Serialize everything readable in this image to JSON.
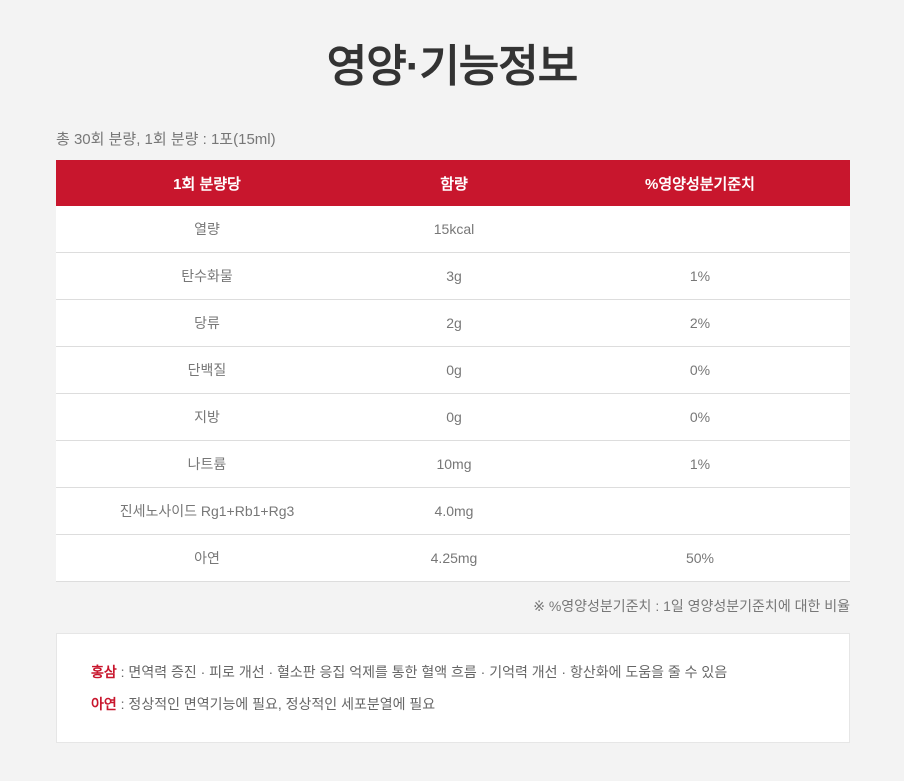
{
  "title": "영양·기능정보",
  "serving": "총 30회 분량, 1회 분량 : 1포(15ml)",
  "table": {
    "headers": [
      "1회 분량당",
      "함량",
      "%영양성분기준치"
    ],
    "rows": [
      [
        "열량",
        "15kcal",
        ""
      ],
      [
        "탄수화물",
        "3g",
        "1%"
      ],
      [
        "당류",
        "2g",
        "2%"
      ],
      [
        "단백질",
        "0g",
        "0%"
      ],
      [
        "지방",
        "0g",
        "0%"
      ],
      [
        "나트륨",
        "10mg",
        "1%"
      ],
      [
        "진세노사이드 Rg1+Rb1+Rg3",
        "4.0mg",
        ""
      ],
      [
        "아연",
        "4.25mg",
        "50%"
      ]
    ]
  },
  "note": "※ %영양성분기준치 : 1일 영양성분기준치에 대한 비율",
  "functions": [
    {
      "key": "홍삼",
      "text": " : 면역력 증진 · 피로 개선 · 혈소판 응집 억제를 통한 혈액 흐름 · 기억력 개선 · 항산화에 도움을 줄 수 있음"
    },
    {
      "key": "아연",
      "text": " : 정상적인 면역기능에 필요, 정상적인 세포분열에 필요"
    }
  ],
  "colors": {
    "accent": "#c8162d",
    "background": "#f3f3f3"
  }
}
